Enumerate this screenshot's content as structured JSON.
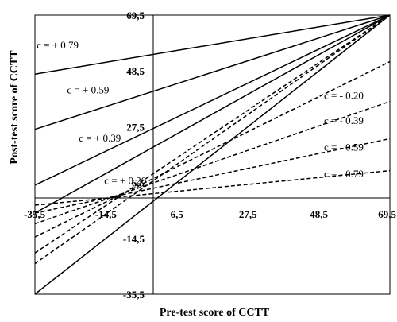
{
  "chart_data": {
    "type": "line",
    "title": "",
    "xlabel": "Pre-test score of CCTT",
    "ylabel": "Post-test score of CCTT",
    "xlim": [
      -35.5,
      69.5
    ],
    "ylim": [
      -35.5,
      69.5
    ],
    "x_ticks": [
      "-35,5",
      "-14,5",
      "6,5",
      "27,5",
      "48,5",
      "69,5"
    ],
    "y_ticks": [
      "69,5",
      "48,5",
      "27,5",
      "6,5",
      "-14,5",
      "-35,5"
    ],
    "x_tick_values": [
      -35.5,
      -14.5,
      6.5,
      27.5,
      48.5,
      69.5
    ],
    "y_tick_values": [
      69.5,
      48.5,
      27.5,
      6.5,
      -14.5,
      -35.5
    ],
    "grid": false,
    "legend": "none",
    "series": [
      {
        "label": "c = + 0.79",
        "style": "solid",
        "x": [
          -35.5,
          69.5
        ],
        "y": [
          47.3,
          69.5
        ]
      },
      {
        "label": "c = + 0.59",
        "style": "solid",
        "x": [
          -35.5,
          69.5
        ],
        "y": [
          26.5,
          69.5
        ]
      },
      {
        "label": "c = + 0.39",
        "style": "solid",
        "x": [
          -35.5,
          69.5
        ],
        "y": [
          5.5,
          69.5
        ]
      },
      {
        "label": "c = + 0.20",
        "style": "solid",
        "x": [
          -35.5,
          69.5
        ],
        "y": [
          -5.0,
          69.5
        ]
      },
      {
        "label": "",
        "style": "solid",
        "x": [
          -35.5,
          69.5
        ],
        "y": [
          -35.5,
          69.5
        ]
      },
      {
        "label": "",
        "style": "dashed",
        "x": [
          -35.5,
          69.5
        ],
        "y": [
          -24.0,
          69.5
        ]
      },
      {
        "label": "",
        "style": "dashed",
        "x": [
          -35.5,
          69.5
        ],
        "y": [
          -20.0,
          69.5
        ]
      },
      {
        "label": "c = - 0.20",
        "style": "dashed",
        "x": [
          -35.5,
          69.5
        ],
        "y": [
          -14.0,
          52.0
        ]
      },
      {
        "label": "c = - 0.39",
        "style": "dashed",
        "x": [
          -35.5,
          69.5
        ],
        "y": [
          -9.0,
          37.0
        ]
      },
      {
        "label": "c = - 0.59",
        "style": "dashed",
        "x": [
          -35.5,
          69.5
        ],
        "y": [
          -5.0,
          23.0
        ]
      },
      {
        "label": "c = - 0.79",
        "style": "dashed",
        "x": [
          -35.5,
          69.5
        ],
        "y": [
          -2.0,
          11.0
        ]
      }
    ],
    "annotations": [
      {
        "text": "c = + 0.79",
        "x": -35.0,
        "y": 57.0
      },
      {
        "text": "c = + 0.59",
        "x": -26.0,
        "y": 40.0
      },
      {
        "text": "c = + 0.39",
        "x": -22.5,
        "y": 22.0
      },
      {
        "text": "c = + 0.20",
        "x": -15.0,
        "y": 6.0
      },
      {
        "text": "c = - 0.20",
        "x": 50.0,
        "y": 38.0
      },
      {
        "text": "c = - 0.39",
        "x": 50.0,
        "y": 28.5
      },
      {
        "text": "c = - 0.59",
        "x": 50.0,
        "y": 18.5
      },
      {
        "text": "c = - 0.79",
        "x": 50.0,
        "y": 8.5
      }
    ]
  }
}
